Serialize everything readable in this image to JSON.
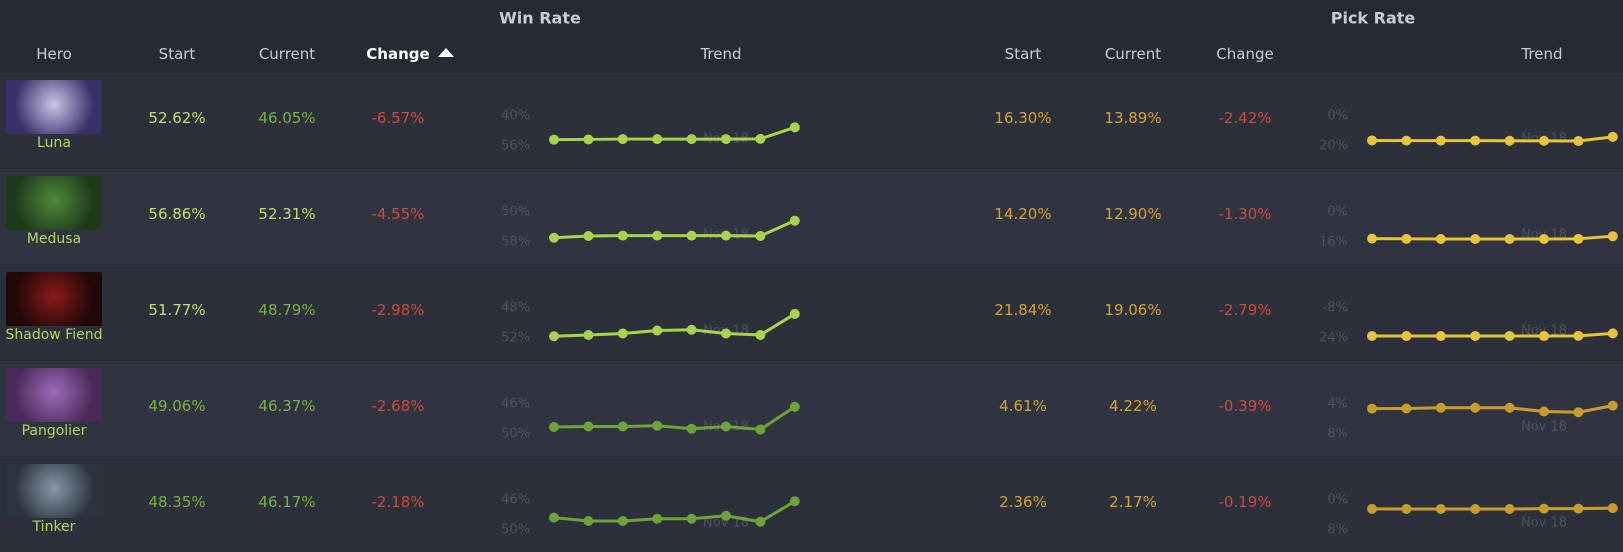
{
  "header": {
    "win_rate": "Win Rate",
    "pick_rate": "Pick Rate"
  },
  "columns": {
    "hero": "Hero",
    "win_start": "Start",
    "win_current": "Current",
    "win_change": "Change",
    "win_trend": "Trend",
    "pick_start": "Start",
    "pick_current": "Current",
    "pick_change": "Change",
    "pick_trend": "Trend"
  },
  "rows": [
    {
      "hero": "Luna",
      "win_start": "52.62%",
      "win_current": "46.05%",
      "win_change": "-6.57%",
      "win_trend": {
        "color": "#a8d44c",
        "x": [
          null,
          null,
          null,
          null,
          null,
          "Nov 18",
          null,
          null
        ],
        "ylim": [
          40,
          56
        ],
        "yticks": [
          {
            "value": 56,
            "label": "56%"
          },
          {
            "value": 40,
            "label": "40%"
          }
        ],
        "values": [
          52.62,
          52.5,
          52.3,
          52.3,
          52.3,
          52.3,
          52.2,
          46.05
        ]
      },
      "pick_start": "16.30%",
      "pick_current": "13.89%",
      "pick_change": "-2.42%",
      "pick_trend": {
        "color": "#e8c33c",
        "x": [
          null,
          null,
          null,
          null,
          null,
          "Nov 18",
          null,
          null
        ],
        "ylim": [
          0,
          20
        ],
        "yticks": [
          {
            "value": 20,
            "label": "20%"
          },
          {
            "value": 0,
            "label": "0%"
          }
        ],
        "values": [
          16.3,
          16.4,
          16.4,
          16.4,
          16.5,
          16.6,
          16.7,
          13.89
        ]
      }
    },
    {
      "hero": "Medusa",
      "win_start": "56.86%",
      "win_current": "52.31%",
      "win_change": "-4.55%",
      "win_trend": {
        "color": "#a8d44c",
        "x": [
          null,
          null,
          null,
          null,
          null,
          "Nov 18",
          null,
          null
        ],
        "ylim": [
          50,
          58
        ],
        "yticks": [
          {
            "value": 58,
            "label": "58%"
          },
          {
            "value": 50,
            "label": "50%"
          }
        ],
        "values": [
          56.86,
          56.4,
          56.3,
          56.3,
          56.3,
          56.3,
          56.4,
          52.31
        ]
      },
      "pick_start": "14.20%",
      "pick_current": "12.90%",
      "pick_change": "-1.30%",
      "pick_trend": {
        "color": "#e8c33c",
        "x": [
          null,
          null,
          null,
          null,
          null,
          "Nov 18",
          null,
          null
        ],
        "ylim": [
          0,
          16
        ],
        "yticks": [
          {
            "value": 16,
            "label": "16%"
          },
          {
            "value": 0,
            "label": "0%"
          }
        ],
        "values": [
          14.2,
          14.3,
          14.4,
          14.4,
          14.4,
          14.4,
          14.3,
          12.9
        ]
      }
    },
    {
      "hero": "Shadow Fiend",
      "win_start": "51.77%",
      "win_current": "48.79%",
      "win_change": "-2.98%",
      "win_trend": {
        "color": "#a8d44c",
        "x": [
          null,
          null,
          null,
          null,
          null,
          "Nov 18",
          null,
          null
        ],
        "ylim": [
          48,
          52
        ],
        "yticks": [
          {
            "value": 52,
            "label": "52%"
          },
          {
            "value": 48,
            "label": "48%"
          }
        ],
        "values": [
          51.77,
          51.6,
          51.4,
          51.0,
          50.9,
          51.4,
          51.6,
          48.79
        ]
      },
      "pick_start": "21.84%",
      "pick_current": "19.06%",
      "pick_change": "-2.79%",
      "pick_trend": {
        "color": "#e8c33c",
        "x": [
          null,
          null,
          null,
          null,
          null,
          "Nov 18",
          null,
          null
        ],
        "ylim": [
          -8,
          24
        ],
        "yticks": [
          {
            "value": 24,
            "label": "24%"
          },
          {
            "value": -8,
            "label": "-8%"
          }
        ],
        "values": [
          21.84,
          21.9,
          21.9,
          21.8,
          21.8,
          21.9,
          21.7,
          19.06
        ]
      }
    },
    {
      "hero": "Pangolier",
      "win_start": "49.06%",
      "win_current": "46.37%",
      "win_change": "-2.68%",
      "win_trend": {
        "color": "#6da338",
        "x": [
          null,
          null,
          null,
          null,
          null,
          "Nov 18",
          null,
          null
        ],
        "ylim": [
          46,
          50
        ],
        "yticks": [
          {
            "value": 50,
            "label": "50%"
          },
          {
            "value": 46,
            "label": "46%"
          }
        ],
        "values": [
          49.06,
          49.0,
          49.0,
          48.9,
          49.3,
          49.0,
          49.4,
          46.37
        ]
      },
      "pick_start": "4.61%",
      "pick_current": "4.22%",
      "pick_change": "-0.39%",
      "pick_trend": {
        "color": "#c99d2b",
        "x": [
          null,
          null,
          null,
          null,
          null,
          "Nov 18",
          null,
          null
        ],
        "ylim": [
          4,
          8
        ],
        "yticks": [
          {
            "value": 8,
            "label": "8%"
          },
          {
            "value": 4,
            "label": "4%"
          }
        ],
        "values": [
          4.61,
          4.6,
          4.5,
          4.5,
          4.5,
          5.0,
          5.1,
          4.22
        ]
      }
    },
    {
      "hero": "Tinker",
      "win_start": "48.35%",
      "win_current": "46.17%",
      "win_change": "-2.18%",
      "win_trend": {
        "color": "#6da338",
        "x": [
          null,
          null,
          null,
          null,
          null,
          "Nov 18",
          null,
          null
        ],
        "ylim": [
          46,
          50
        ],
        "yticks": [
          {
            "value": 50,
            "label": "50%"
          },
          {
            "value": 46,
            "label": "46%"
          }
        ],
        "values": [
          48.35,
          48.8,
          48.8,
          48.5,
          48.5,
          48.1,
          48.9,
          46.17
        ]
      },
      "pick_start": "2.36%",
      "pick_current": "2.17%",
      "pick_change": "-0.19%",
      "pick_trend": {
        "color": "#c99d2b",
        "x": [
          null,
          null,
          null,
          null,
          null,
          "Nov 18",
          null,
          null
        ],
        "ylim": [
          0,
          8
        ],
        "yticks": [
          {
            "value": 8,
            "label": "8%"
          },
          {
            "value": 0,
            "label": "0%"
          }
        ],
        "values": [
          2.36,
          2.4,
          2.4,
          2.4,
          2.4,
          2.3,
          2.3,
          2.17
        ]
      }
    }
  ]
}
